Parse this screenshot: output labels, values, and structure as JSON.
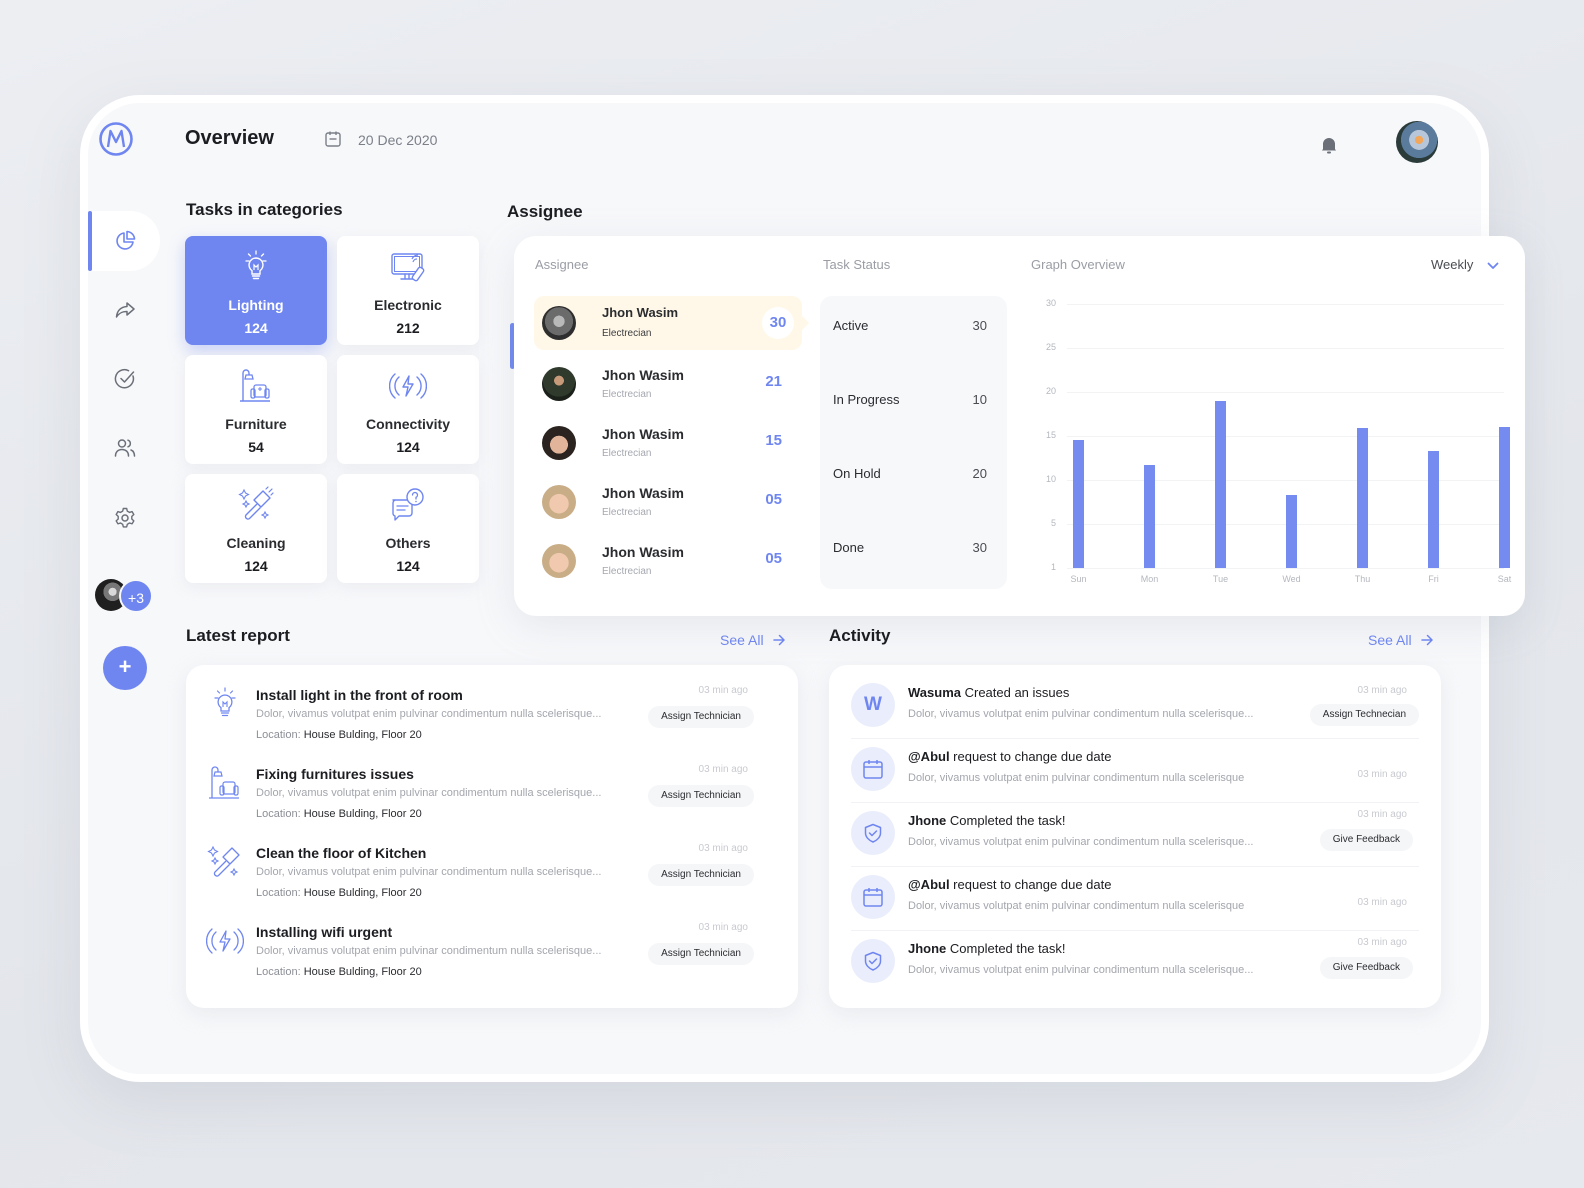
{
  "header": {
    "title": "Overview",
    "date": "20 Dec 2020"
  },
  "sidebar": {
    "items": [
      {
        "name": "dashboard",
        "icon": "pie-chart-icon",
        "active": true
      },
      {
        "name": "share",
        "icon": "share-arrow-icon",
        "active": false
      },
      {
        "name": "tasks",
        "icon": "check-circle-icon",
        "active": false
      },
      {
        "name": "team",
        "icon": "users-icon",
        "active": false
      },
      {
        "name": "settings",
        "icon": "gear-icon",
        "active": false
      }
    ],
    "team_more": "+3",
    "add_label": "+"
  },
  "categories": {
    "title": "Tasks in categories",
    "items": [
      {
        "name": "Lighting",
        "count": "124",
        "icon": "lightbulb-icon",
        "active": true
      },
      {
        "name": "Electronic",
        "count": "212",
        "icon": "monitor-remote-icon",
        "active": false
      },
      {
        "name": "Furniture",
        "count": "54",
        "icon": "lamp-armchair-icon",
        "active": false
      },
      {
        "name": "Connectivity",
        "count": "124",
        "icon": "wireless-bolt-icon",
        "active": false
      },
      {
        "name": "Cleaning",
        "count": "124",
        "icon": "squeegee-icon",
        "active": false
      },
      {
        "name": "Others",
        "count": "124",
        "icon": "chat-question-icon",
        "active": false
      }
    ]
  },
  "assignee": {
    "title": "Assignee",
    "col_assignee": "Assignee",
    "col_status": "Task Status",
    "col_graph": "Graph Overview",
    "period": "Weekly",
    "people": [
      {
        "name": "Jhon Wasim",
        "role": "Electrecian",
        "count": "30",
        "active": true
      },
      {
        "name": "Jhon Wasim",
        "role": "Electrecian",
        "count": "21",
        "active": false
      },
      {
        "name": "Jhon Wasim",
        "role": "Electrecian",
        "count": "15",
        "active": false
      },
      {
        "name": "Jhon Wasim",
        "role": "Electrecian",
        "count": "05",
        "active": false
      },
      {
        "name": "Jhon Wasim",
        "role": "Electrecian",
        "count": "05",
        "active": false
      }
    ],
    "status": [
      {
        "label": "Active",
        "value": "30"
      },
      {
        "label": "In Progress",
        "value": "10"
      },
      {
        "label": "On Hold",
        "value": "20"
      },
      {
        "label": "Done",
        "value": "30"
      }
    ]
  },
  "chart_data": {
    "type": "bar",
    "title": "Graph Overview",
    "categories": [
      "Sun",
      "Mon",
      "Tue",
      "Wed",
      "Thu",
      "Fri",
      "Sat"
    ],
    "values": [
      14.5,
      11.7,
      19,
      8.3,
      15.9,
      13.3,
      16
    ],
    "yticks": [
      "30",
      "25",
      "20",
      "15",
      "10",
      "5",
      "1"
    ],
    "ylim": [
      0,
      30
    ],
    "xlabel": "",
    "ylabel": "",
    "grid": true,
    "color": "#758bf0"
  },
  "report": {
    "title": "Latest report",
    "see_all": "See All",
    "items": [
      {
        "title": "Install light in the front of room",
        "desc": "Dolor, vivamus volutpat enim pulvinar condimentum nulla scelerisque...",
        "loc_label": "Location:",
        "loc": "House Bulding, Floor 20",
        "time": "03 min ago",
        "action": "Assign Technician",
        "icon": "lightbulb-icon"
      },
      {
        "title": "Fixing furnitures issues",
        "desc": "Dolor, vivamus volutpat enim pulvinar condimentum nulla scelerisque...",
        "loc_label": "Location:",
        "loc": "House Bulding, Floor 20",
        "time": "03 min ago",
        "action": "Assign Technician",
        "icon": "lamp-armchair-icon"
      },
      {
        "title": "Clean the floor of Kitchen",
        "desc": "Dolor, vivamus volutpat enim pulvinar condimentum nulla scelerisque...",
        "loc_label": "Location:",
        "loc": "House Bulding, Floor 20",
        "time": "03 min ago",
        "action": "Assign Technician",
        "icon": "squeegee-icon"
      },
      {
        "title": "Installing wifi urgent",
        "desc": "Dolor, vivamus volutpat enim pulvinar condimentum nulla scelerisque...",
        "loc_label": "Location:",
        "loc": "House Bulding, Floor 20",
        "time": "03 min ago",
        "action": "Assign Technician",
        "icon": "wireless-bolt-icon"
      }
    ]
  },
  "activity": {
    "title": "Activity",
    "see_all": "See All",
    "items": [
      {
        "actor": "Wasuma",
        "text": " Created an issues",
        "desc": "Dolor, vivamus volutpat enim pulvinar condimentum nulla scelerisque...",
        "time": "03 min ago",
        "action": "Assign Technecian",
        "icon": "letter-w-avatar",
        "initial": "W"
      },
      {
        "actor": "@Abul",
        "text": " request to change due date",
        "desc": "Dolor, vivamus volutpat enim pulvinar condimentum nulla scelerisque",
        "time": "03 min ago",
        "action": "",
        "icon": "calendar-icon"
      },
      {
        "actor": "Jhone",
        "text": " Completed the task!",
        "desc": "Dolor, vivamus volutpat enim pulvinar condimentum nulla scelerisque...",
        "time": "03 min ago",
        "action": "Give Feedback",
        "icon": "shield-check-icon"
      },
      {
        "actor": "@Abul",
        "text": " request to change due date",
        "desc": "Dolor, vivamus volutpat enim pulvinar condimentum nulla scelerisque",
        "time": "03 min ago",
        "action": "",
        "icon": "calendar-icon"
      },
      {
        "actor": "Jhone",
        "text": " Completed the task!",
        "desc": "Dolor, vivamus volutpat enim pulvinar condimentum nulla scelerisque...",
        "time": "03 min ago",
        "action": "Give Feedback",
        "icon": "shield-check-icon"
      }
    ]
  },
  "colors": {
    "accent": "#6f86f0",
    "highlight_row": "#fff8e8",
    "background": "#f7f8fa"
  }
}
